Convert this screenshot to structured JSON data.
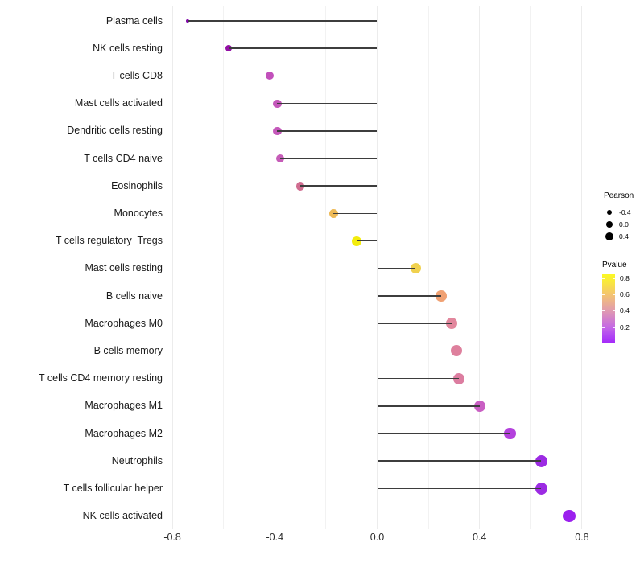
{
  "chart_data": {
    "type": "scatter",
    "variant": "horizontal lollipop (stem from 0 to dot)",
    "title": "",
    "xlabel": "",
    "ylabel": "",
    "xlim": [
      -0.85,
      0.85
    ],
    "x_ticks": [
      -0.8,
      -0.4,
      0.0,
      0.4,
      0.8
    ],
    "x_tick_labels": [
      "-0.8",
      "-0.4",
      "0.0",
      "0.4",
      "0.8"
    ],
    "x_minor_ticks": [
      -0.6,
      -0.2,
      0.2,
      0.6
    ],
    "grid": "vertical light-gray gridlines only, no axis lines, white background",
    "baseline_x": 0,
    "stem_color": "#3d3d3d",
    "points": [
      {
        "label": "Plasma cells",
        "pearson": -0.74,
        "color": "#7f04a8",
        "radius": 2.2
      },
      {
        "label": "NK cells resting",
        "pearson": -0.58,
        "color": "#930fa5",
        "radius": 4.2
      },
      {
        "label": "T cells CD8",
        "pearson": -0.42,
        "color": "#c250bb",
        "radius": 5.0
      },
      {
        "label": "Mast cells activated",
        "pearson": -0.39,
        "color": "#c458ba",
        "radius": 5.1
      },
      {
        "label": "Dendritic cells resting",
        "pearson": -0.39,
        "color": "#c458ba",
        "radius": 5.1
      },
      {
        "label": "T cells CD4 naive",
        "pearson": -0.38,
        "color": "#c65cb8",
        "radius": 5.1
      },
      {
        "label": "Eosinophils",
        "pearson": -0.3,
        "color": "#d06d90",
        "radius": 5.4
      },
      {
        "label": "Monocytes",
        "pearson": -0.17,
        "color": "#eeba57",
        "radius": 5.9
      },
      {
        "label": "T cells regulatory  Tregs",
        "pearson": -0.08,
        "color": "#f3ec0c",
        "radius": 6.1
      },
      {
        "label": "Mast cells resting",
        "pearson": 0.15,
        "color": "#f0d14e",
        "radius": 6.6
      },
      {
        "label": "B cells naive",
        "pearson": 0.25,
        "color": "#f0a173",
        "radius": 6.8
      },
      {
        "label": "Macrophages M0",
        "pearson": 0.29,
        "color": "#e2879d",
        "radius": 7.0
      },
      {
        "label": "B cells memory",
        "pearson": 0.31,
        "color": "#de809d",
        "radius": 7.0
      },
      {
        "label": "T cells CD4 memory resting",
        "pearson": 0.32,
        "color": "#dc7da0",
        "radius": 7.0
      },
      {
        "label": "Macrophages M1",
        "pearson": 0.4,
        "color": "#c95fc3",
        "radius": 7.2
      },
      {
        "label": "Macrophages M2",
        "pearson": 0.52,
        "color": "#b441dd",
        "radius": 7.4
      },
      {
        "label": "Neutrophils",
        "pearson": 0.64,
        "color": "#9c2be3",
        "radius": 7.5
      },
      {
        "label": "T cells follicular helper",
        "pearson": 0.64,
        "color": "#9c2be3",
        "radius": 7.5
      },
      {
        "label": "NK cells activated",
        "pearson": 0.75,
        "color": "#9b20ee",
        "radius": 7.7
      }
    ],
    "legend": {
      "size": {
        "title": "Pearson",
        "dot_color": "#000000",
        "entries": [
          {
            "label": "-0.4",
            "radius": 3.4
          },
          {
            "label": "0.0",
            "radius": 4.4
          },
          {
            "label": "0.4",
            "radius": 5.2
          }
        ]
      },
      "color": {
        "title": "Pvalue",
        "tick_labels": [
          "0.8",
          "0.6",
          "0.4",
          "0.2"
        ],
        "gradient_top_to_bottom": [
          {
            "c": "#fbf824",
            "p": 0
          },
          {
            "c": "#f9ea3a",
            "p": 10
          },
          {
            "c": "#f4c470",
            "p": 29
          },
          {
            "c": "#e19cae",
            "p": 52
          },
          {
            "c": "#c467e6",
            "p": 77
          },
          {
            "c": "#b249f2",
            "p": 88
          },
          {
            "c": "#a428fa",
            "p": 100
          }
        ]
      }
    }
  }
}
